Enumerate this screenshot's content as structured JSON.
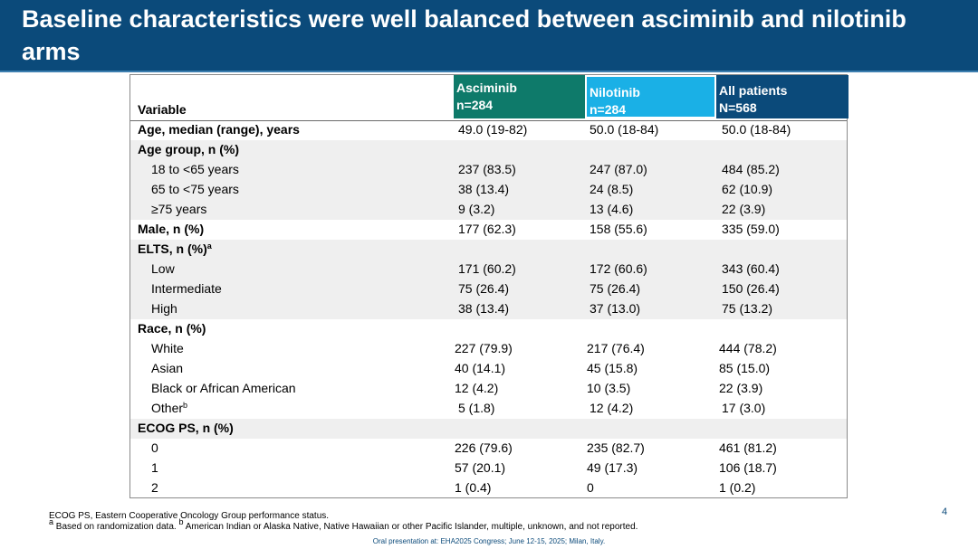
{
  "title": "Baseline characteristics were well balanced between asciminib and nilotinib arms",
  "table": {
    "variable_header": "Variable",
    "col_asciminib": {
      "name": "Asciminib",
      "n": "n=284"
    },
    "col_nilotinib": {
      "name": "Nilotinib",
      "n": "n=284"
    },
    "col_all": {
      "name": "All patients",
      "n": "N=568"
    },
    "rows": [
      {
        "label": "Age, median (range), years",
        "asc": "49.0 (19-82)",
        "nil": "50.0 (18-84)",
        "all": "50.0 (18-84)"
      },
      {
        "label": "Age group, n (%)",
        "asc": "",
        "nil": "",
        "all": ""
      },
      {
        "label": "18 to <65 years",
        "asc": "237 (83.5)",
        "nil": "247 (87.0)",
        "all": "484 (85.2)"
      },
      {
        "label": "65 to <75 years",
        "asc": "38 (13.4)",
        "nil": "24 (8.5)",
        "all": "62 (10.9)"
      },
      {
        "label": "≥75 years",
        "asc": "9 (3.2)",
        "nil": "13 (4.6)",
        "all": "22 (3.9)"
      },
      {
        "label": "Male, n (%)",
        "asc": "177 (62.3)",
        "nil": "158 (55.6)",
        "all": "335 (59.0)"
      },
      {
        "label": "ELTS, n (%)",
        "sup": "a",
        "asc": "",
        "nil": "",
        "all": ""
      },
      {
        "label": "Low",
        "asc": "171 (60.2)",
        "nil": "172 (60.6)",
        "all": "343 (60.4)"
      },
      {
        "label": "Intermediate",
        "asc": "75 (26.4)",
        "nil": "75 (26.4)",
        "all": "150 (26.4)"
      },
      {
        "label": "High",
        "asc": "38 (13.4)",
        "nil": "37 (13.0)",
        "all": "75 (13.2)"
      },
      {
        "label": "Race, n (%)",
        "asc": "",
        "nil": "",
        "all": ""
      },
      {
        "label": "White",
        "asc": "227 (79.9)",
        "nil": "217 (76.4)",
        "all": "444 (78.2)"
      },
      {
        "label": "Asian",
        "asc": "40 (14.1)",
        "nil": "45 (15.8)",
        "all": "85 (15.0)"
      },
      {
        "label": "Black or African American",
        "asc": "12 (4.2)",
        "nil": "10 (3.5)",
        "all": "22 (3.9)"
      },
      {
        "label": "Other",
        "sup": "b",
        "asc": "5 (1.8)",
        "nil": "12 (4.2)",
        "all": "17 (3.0)"
      },
      {
        "label": "ECOG PS, n (%)",
        "asc": "",
        "nil": "",
        "all": ""
      },
      {
        "label": "0",
        "asc": "226 (79.6)",
        "nil": "235 (82.7)",
        "all": "461 (81.2)"
      },
      {
        "label": "1",
        "asc": "57 (20.1)",
        "nil": "49 (17.3)",
        "all": "106 (18.7)"
      },
      {
        "label": "2",
        "asc": "1 (0.4)",
        "nil": "0",
        "all": "1 (0.2)"
      }
    ]
  },
  "page_number": "4",
  "footnotes": {
    "line1": "ECOG PS, Eastern Cooperative Oncology Group performance status.",
    "line2_sup_a": "a",
    "line2_a": " Based on randomization data. ",
    "line2_sup_b": "b",
    "line2_b": " American Indian or Alaska Native, Native Hawaiian or other Pacific Islander, multiple, unknown, and not reported."
  },
  "oral_presentation": "Oral presentation at: EHA2025 Congress; June 12-15, 2025; Milan, Italy.",
  "colors": {
    "title_bg": "#0b4a7a",
    "asciminib": "#0e7a6a",
    "nilotinib": "#1ab0e6",
    "all_patients": "#0b4a7a"
  }
}
